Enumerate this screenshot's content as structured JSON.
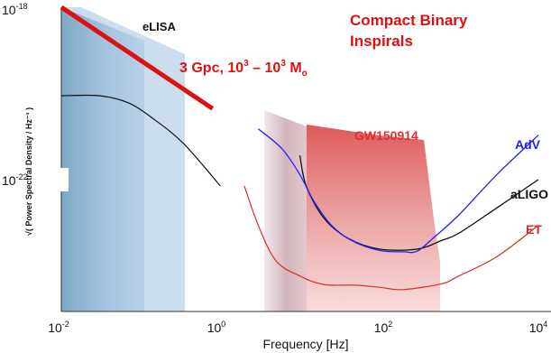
{
  "chart_data": {
    "type": "line",
    "xlabel": "Frequency [Hz]",
    "ylabel": "√( Power Spectral Density / Hz⁻¹ )",
    "xscale": "log",
    "yscale": "log",
    "xlim": [
      0.01,
      10000
    ],
    "ylim": [
      1e-24,
      1e-18
    ],
    "x_ticks": [
      {
        "value": 0.01,
        "mantissa": "10",
        "exp": "-2"
      },
      {
        "value": 1,
        "mantissa": "10",
        "exp": "0"
      },
      {
        "value": 100,
        "mantissa": "10",
        "exp": "2"
      },
      {
        "value": 10000,
        "mantissa": "10",
        "exp": "4"
      }
    ],
    "y_ticks": [
      {
        "value": 1e-18,
        "mantissa": "10",
        "exp": "-18"
      },
      {
        "value": 1e-22,
        "mantissa": "10",
        "exp": "-22"
      }
    ],
    "grid": false,
    "colors": {
      "elisa": "#111111",
      "adv": "#2222ee",
      "aligo": "#111111",
      "et": "#dd2b22",
      "inspiral_band": "#dd1111",
      "annotation": "#dd1111",
      "gw150914": "#dd4444",
      "lisa_region": "#7aa6cf",
      "ground_region": "#a65f6f"
    },
    "series": [
      {
        "name": "eLISA",
        "points": [
          [
            0.01,
            1.8e-20
          ],
          [
            0.03,
            1.8e-20
          ],
          [
            0.07,
            1.3e-20
          ],
          [
            0.15,
            6e-21
          ],
          [
            0.35,
            2e-21
          ],
          [
            1.0,
            3e-22
          ]
        ]
      },
      {
        "name": "AdV",
        "points": [
          [
            3,
            4e-21
          ],
          [
            6,
            1.6e-21
          ],
          [
            10,
            5e-22
          ],
          [
            15,
            1.5e-22
          ],
          [
            25,
            5e-23
          ],
          [
            45,
            2.5e-23
          ],
          [
            100,
            1.6e-23
          ],
          [
            200,
            1.5e-23
          ],
          [
            300,
            1.55e-23
          ],
          [
            500,
            3e-23
          ],
          [
            1000,
            8e-23
          ],
          [
            3000,
            5e-22
          ],
          [
            10000,
            3e-21
          ]
        ]
      },
      {
        "name": "aLIGO",
        "points": [
          [
            10,
            1.2e-21
          ],
          [
            12,
            3e-22
          ],
          [
            20,
            7e-23
          ],
          [
            40,
            2.8e-23
          ],
          [
            100,
            1.7e-23
          ],
          [
            300,
            1.7e-23
          ],
          [
            600,
            2.5e-23
          ],
          [
            1000,
            3.5e-23
          ],
          [
            3000,
            1.1e-22
          ],
          [
            10000,
            4e-22
          ]
        ]
      },
      {
        "name": "ET",
        "points": [
          [
            2,
            3e-22
          ],
          [
            3,
            5e-23
          ],
          [
            5,
            1e-23
          ],
          [
            10,
            5e-24
          ],
          [
            20,
            3.4e-24
          ],
          [
            50,
            3.3e-24
          ],
          [
            100,
            3e-24
          ],
          [
            200,
            2.7e-24
          ],
          [
            600,
            3.5e-24
          ],
          [
            1000,
            5e-24
          ],
          [
            3000,
            1.2e-23
          ],
          [
            10000,
            5e-23
          ]
        ]
      }
    ],
    "bands": [
      {
        "name": "Compact Binary Inspirals",
        "points": [
          [
            0.01,
            1e-18
          ],
          [
            0.8,
            1e-20
          ]
        ]
      }
    ],
    "regions": [
      {
        "name": "eLISA sources",
        "role": "lisa_region"
      },
      {
        "name": "GW150914",
        "role": "gw150914"
      },
      {
        "name": "ground sources",
        "role": "ground_region"
      }
    ],
    "annotations": {
      "elisa": "eLISA",
      "title_line1": "Compact Binary",
      "title_line2": "Inspirals",
      "inspiral_prefix": "3 Gpc,  10",
      "inspiral_exp1": "3",
      "inspiral_mid": " – 10",
      "inspiral_exp2": "3",
      "inspiral_unit": " M",
      "inspiral_sub": "o",
      "gw150914": "GW150914",
      "adv": "AdV",
      "aligo": "aLIGO",
      "et": "ET"
    }
  }
}
